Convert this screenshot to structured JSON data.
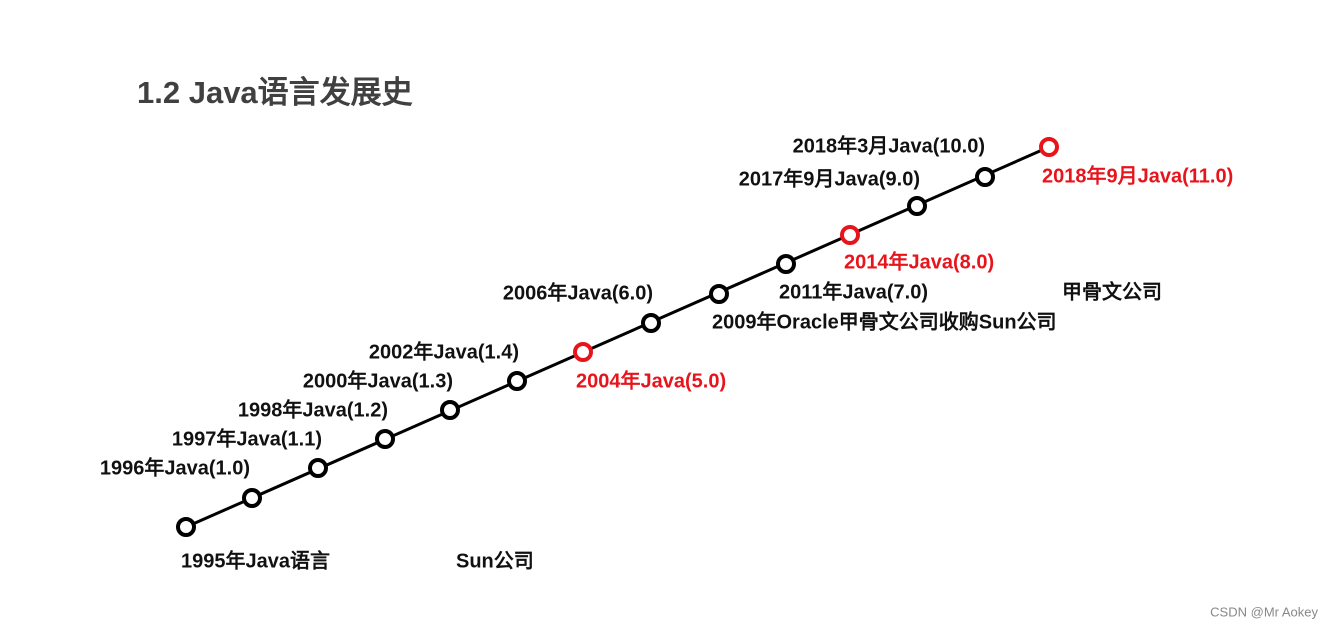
{
  "header": {
    "title": "1.2 Java语言发展史"
  },
  "timeline": {
    "start": "1995年Java语言",
    "company": "Sun公司",
    "milestones": [
      "1996年Java(1.0)",
      "1997年Java(1.1)",
      "1998年Java(1.2)",
      "2000年Java(1.3)",
      "2002年Java(1.4)",
      "2004年Java(5.0)",
      "2006年Java(6.0)",
      "2009年Oracle甲骨文公司收购Sun公司",
      "2011年Java(7.0)",
      "2014年Java(8.0)",
      "2017年9月Java(9.0)",
      "2018年3月Java(10.0)",
      "2018年9月Java(11.0)"
    ],
    "new_company": "甲骨文公司"
  },
  "footer": {
    "watermark": "CSDN @Mr  Aokey"
  }
}
